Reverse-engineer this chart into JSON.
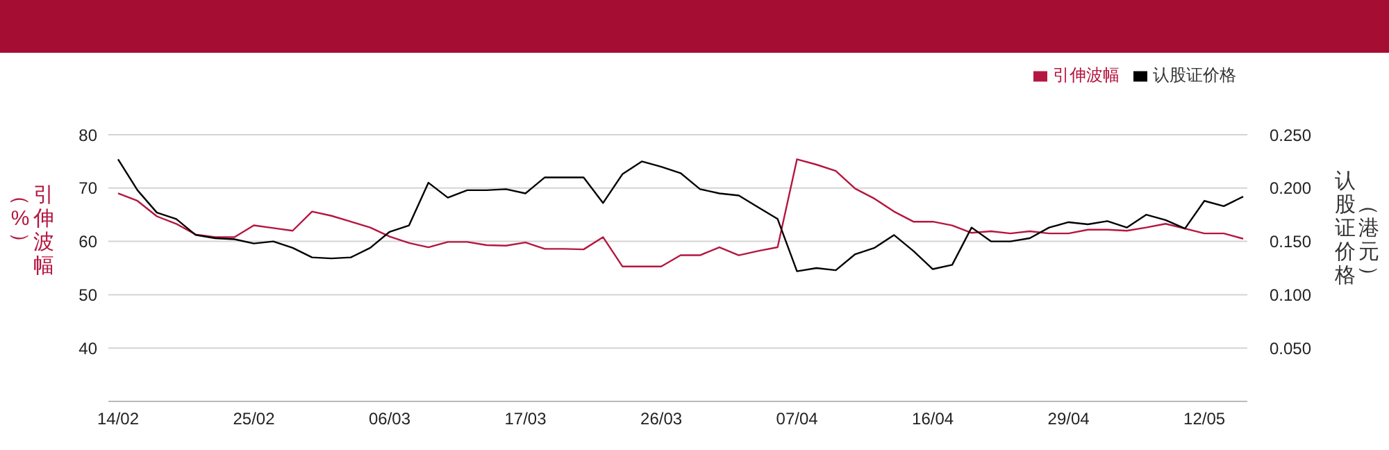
{
  "chart_data": {
    "type": "line",
    "categories": [
      "14/02",
      null,
      null,
      null,
      null,
      null,
      null,
      "25/02",
      null,
      null,
      null,
      null,
      null,
      null,
      "06/03",
      null,
      null,
      null,
      null,
      null,
      null,
      "17/03",
      null,
      null,
      null,
      null,
      null,
      null,
      "26/03",
      null,
      null,
      null,
      null,
      null,
      null,
      "07/04",
      null,
      null,
      null,
      null,
      null,
      null,
      "16/04",
      null,
      null,
      null,
      null,
      null,
      null,
      "29/04",
      null,
      null,
      null,
      null,
      null,
      null,
      "12/05",
      null,
      null
    ],
    "series": [
      {
        "name": "引伸波幅",
        "color": "#b5163f",
        "values": [
          69.0,
          67.6,
          64.7,
          63.3,
          61.3,
          60.8,
          60.8,
          63.0,
          62.5,
          62.0,
          65.6,
          64.8,
          63.7,
          62.6,
          60.9,
          59.7,
          58.9,
          59.9,
          59.9,
          59.3,
          59.2,
          59.8,
          58.6,
          58.6,
          58.5,
          60.8,
          55.3,
          55.3,
          55.3,
          57.4,
          57.4,
          58.9,
          57.4,
          58.2,
          58.9,
          75.4,
          74.4,
          73.2,
          69.9,
          68.0,
          65.6,
          63.7,
          63.7,
          63.0,
          61.6,
          61.9,
          61.5,
          61.9,
          61.5,
          61.5,
          62.2,
          62.2,
          62.0,
          62.6,
          63.3,
          62.4,
          61.5,
          61.5,
          60.5
        ]
      },
      {
        "name": "认股证价格",
        "color": "#000000",
        "axis": "y2",
        "values": [
          0.227,
          0.198,
          0.177,
          0.171,
          0.156,
          0.153,
          0.152,
          0.148,
          0.15,
          0.144,
          0.135,
          0.134,
          0.135,
          0.144,
          0.159,
          0.165,
          0.205,
          0.191,
          0.198,
          0.198,
          0.199,
          0.195,
          0.21,
          0.21,
          0.21,
          0.186,
          0.213,
          0.225,
          0.22,
          0.214,
          0.199,
          0.195,
          0.193,
          0.182,
          0.171,
          0.122,
          0.125,
          0.123,
          0.138,
          0.144,
          0.156,
          0.141,
          0.124,
          0.128,
          0.163,
          0.15,
          0.15,
          0.153,
          0.163,
          0.168,
          0.166,
          0.169,
          0.163,
          0.175,
          0.17,
          0.162,
          0.188,
          0.183,
          0.192
        ]
      }
    ],
    "ylabel": "引伸波幅（%）",
    "y2label": "认股证价格（港元）",
    "ylim": [
      30,
      80
    ],
    "yticks": [
      40,
      50,
      60,
      70,
      80
    ],
    "y2lim": [
      0,
      0.25
    ],
    "y2ticks": [
      {
        "value": 0.05,
        "label": "0.050"
      },
      {
        "value": 0.1,
        "label": "0.100"
      },
      {
        "value": 0.15,
        "label": "0.150"
      },
      {
        "value": 0.2,
        "label": "0.200"
      },
      {
        "value": 0.25,
        "label": "0.250"
      }
    ],
    "grid": "y",
    "legend": "top right"
  }
}
